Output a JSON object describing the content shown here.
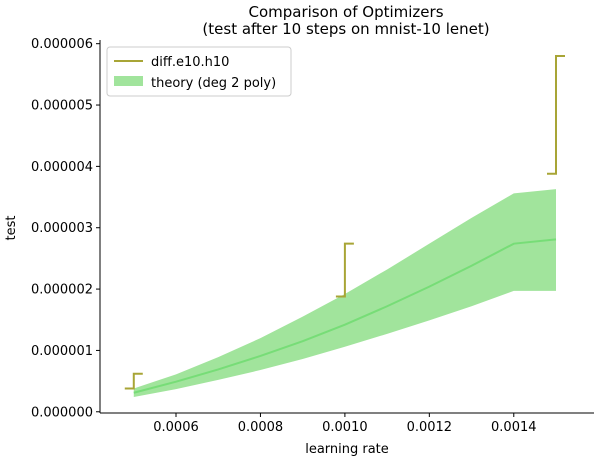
{
  "chart_data": {
    "type": "line",
    "title": "Comparison of Optimizers",
    "subtitle": "(test after 10 steps on mnist-10 lenet)",
    "xlabel": "learning rate",
    "ylabel": "test",
    "xlim": [
      0.00042,
      0.00159
    ],
    "ylim": [
      -2e-08,
      6.06e-06
    ],
    "xticks": [
      0.0006,
      0.0008,
      0.001,
      0.0012,
      0.0014
    ],
    "xtick_labels": [
      "0.0006",
      "0.0008",
      "0.0010",
      "0.0012",
      "0.0014"
    ],
    "yticks": [
      0.0,
      1e-06,
      2e-06,
      3e-06,
      4e-06,
      5e-06,
      6e-06
    ],
    "ytick_labels": [
      "0.000000",
      "0.000001",
      "0.000002",
      "0.000003",
      "0.000004",
      "0.000005",
      "0.000006"
    ],
    "legend_placement": "top-left",
    "colors": {
      "diff": "#a8a536",
      "theory_line": "#77dd77",
      "theory_band": "#a1e49c"
    },
    "series": [
      {
        "name": "diff.e10.h10",
        "kind": "bracket",
        "points": [
          {
            "x": 0.0005,
            "low": 3.8e-07,
            "high": 6.2e-07
          },
          {
            "x": 0.001,
            "low": 1.88e-06,
            "high": 2.74e-06
          },
          {
            "x": 0.0015,
            "low": 3.88e-06,
            "high": 5.8e-06
          }
        ]
      },
      {
        "name": "theory (deg 2 poly)",
        "kind": "band",
        "x": [
          0.0005,
          0.0006,
          0.0007,
          0.0008,
          0.0009,
          0.001,
          0.0011,
          0.0012,
          0.0013,
          0.0014,
          0.0015
        ],
        "mid": [
          3.1e-07,
          4.9e-07,
          6.9e-07,
          9.1e-07,
          1.15e-06,
          1.42e-06,
          1.72e-06,
          2.04e-06,
          2.38e-06,
          2.74e-06,
          2.81e-06
        ],
        "lower": [
          2.4e-07,
          3.7e-07,
          5.2e-07,
          6.8e-07,
          8.6e-07,
          1.06e-06,
          1.27e-06,
          1.49e-06,
          1.72e-06,
          1.97e-06,
          1.97e-06
        ],
        "upper": [
          3.8e-07,
          6.1e-07,
          8.9e-07,
          1.2e-06,
          1.55e-06,
          1.92e-06,
          2.32e-06,
          2.74e-06,
          3.16e-06,
          3.56e-06,
          3.63e-06
        ]
      }
    ]
  }
}
